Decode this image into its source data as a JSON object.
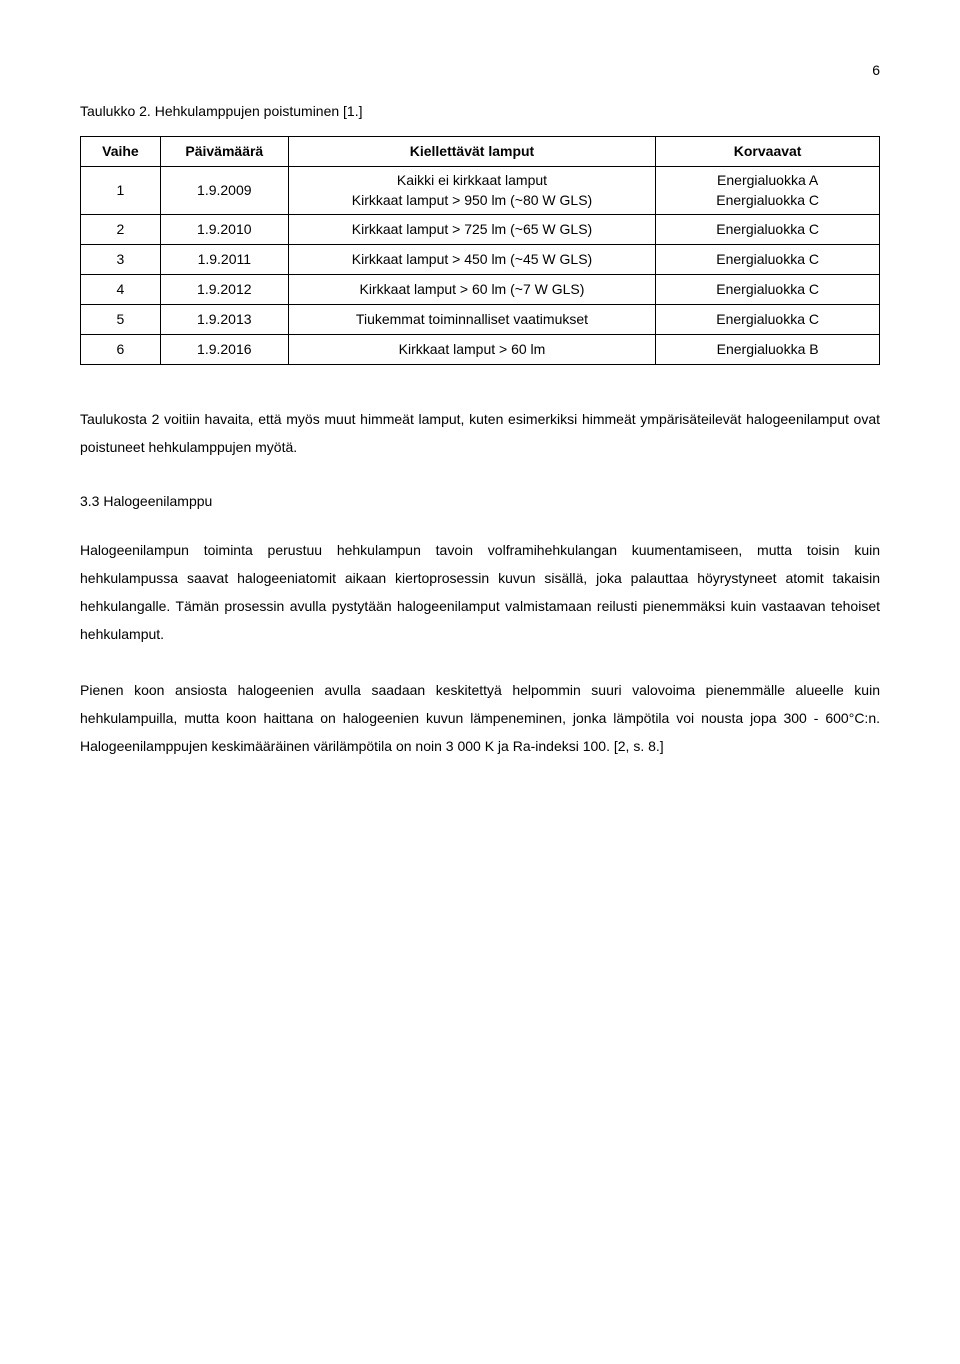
{
  "pageNumber": "6",
  "tableCaption": "Taulukko 2. Hehkulamppujen poistuminen [1.]",
  "table": {
    "headers": {
      "vaihe": "Vaihe",
      "date": "Päivämäärä",
      "kiel": "Kiellettävät lamput",
      "korv": "Korvaavat"
    },
    "rows": [
      {
        "vaihe": "1",
        "date": "1.9.2009",
        "kiel_line1": "Kaikki ei kirkkaat lamput",
        "kiel_line2": "Kirkkaat lamput > 950 lm (~80 W GLS)",
        "korv_line1": "Energialuokka A",
        "korv_line2": "Energialuokka C"
      },
      {
        "vaihe": "2",
        "date": "1.9.2010",
        "kiel": "Kirkkaat lamput > 725 lm (~65 W GLS)",
        "korv": "Energialuokka C"
      },
      {
        "vaihe": "3",
        "date": "1.9.2011",
        "kiel": "Kirkkaat lamput > 450 lm (~45 W GLS)",
        "korv": "Energialuokka C"
      },
      {
        "vaihe": "4",
        "date": "1.9.2012",
        "kiel": "Kirkkaat lamput > 60 lm (~7 W GLS)",
        "korv": "Energialuokka C"
      },
      {
        "vaihe": "5",
        "date": "1.9.2013",
        "kiel": "Tiukemmat toiminnalliset vaatimukset",
        "korv": "Energialuokka C"
      },
      {
        "vaihe": "6",
        "date": "1.9.2016",
        "kiel": "Kirkkaat lamput > 60 lm",
        "korv": "Energialuokka B"
      }
    ]
  },
  "para1": "Taulukosta 2 voitiin havaita, että myös muut himmeät lamput, kuten esimerkiksi himmeät ympärisäteilevät halogeenilamput ovat poistuneet hehkulamppujen myötä.",
  "sectionHeading": "3.3   Halogeenilamppu",
  "para2": "Halogeenilampun toiminta perustuu hehkulampun tavoin volframihehkulangan kuumentamiseen, mutta toisin kuin hehkulampussa saavat halogeeniatomit aikaan kiertoprosessin kuvun sisällä, joka palauttaa höyrystyneet atomit takaisin hehkulangalle. Tämän prosessin avulla pystytään halogeenilamput valmistamaan reilusti pienemmäksi kuin vastaavan tehoiset hehkulamput.",
  "para3": "Pienen koon ansiosta halogeenien avulla saadaan keskitettyä helpommin suuri valovoima pienemmälle alueelle kuin hehkulampuilla, mutta koon haittana on halogeenien kuvun lämpeneminen, jonka lämpötila voi nousta jopa 300 - 600°C:n. Halogeenilamppujen keskimääräinen värilämpötila on noin 3 000 K ja Ra-indeksi 100. [2, s. 8.]"
}
